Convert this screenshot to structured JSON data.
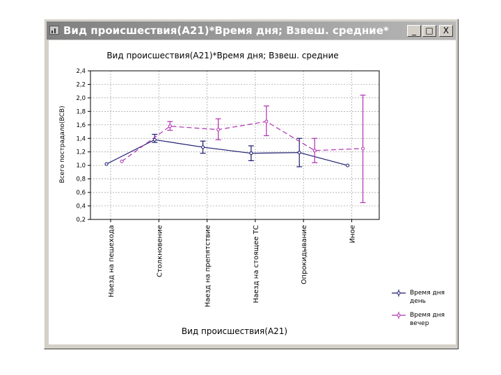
{
  "window": {
    "title": "Вид происшествия(А21)*Время дня; Взвеш. средние*",
    "min_glyph": "_",
    "max_glyph": "□",
    "close_glyph": "X"
  },
  "chart_data": {
    "type": "line",
    "title": "Вид происшествия(А21)*Время дня; Взвеш. средние",
    "xlabel": "Вид происшествия(А21)",
    "ylabel": "Всего пострадало(ВСВ)",
    "ylim": [
      0.2,
      2.4
    ],
    "yticks": [
      "2,4",
      "2,2",
      "2,0",
      "1,8",
      "1,6",
      "1,4",
      "1,2",
      "1,0",
      "0,8",
      "0,6",
      "0,4",
      "0,2"
    ],
    "categories": [
      "Наезд на пешехода",
      "Столкновение",
      "Наезд на препятствие",
      "Наезд на стоящее ТС",
      "Опрокидывание",
      "Иное"
    ],
    "grid": true,
    "legend_position": "bottom-right",
    "series": [
      {
        "name": "Время дня день",
        "color": "#1a1a6e",
        "dashed": false,
        "values": [
          1.02,
          1.38,
          1.27,
          1.18,
          1.19,
          1.0
        ],
        "err_low": [
          1.02,
          1.34,
          1.18,
          1.07,
          0.98,
          1.0
        ],
        "err_high": [
          1.02,
          1.46,
          1.36,
          1.29,
          1.4,
          1.0
        ]
      },
      {
        "name": "Время дня вечер",
        "color": "#b030b0",
        "dashed": true,
        "values": [
          1.06,
          1.58,
          1.53,
          1.65,
          1.22,
          1.25
        ],
        "err_low": [
          1.06,
          1.52,
          1.38,
          1.44,
          1.04,
          0.45
        ],
        "err_high": [
          1.06,
          1.65,
          1.69,
          1.88,
          1.4,
          2.04
        ]
      }
    ],
    "legend": [
      {
        "line1": "Время дня",
        "line2": "день"
      },
      {
        "line1": "Время дня",
        "line2": "вечер"
      }
    ]
  }
}
